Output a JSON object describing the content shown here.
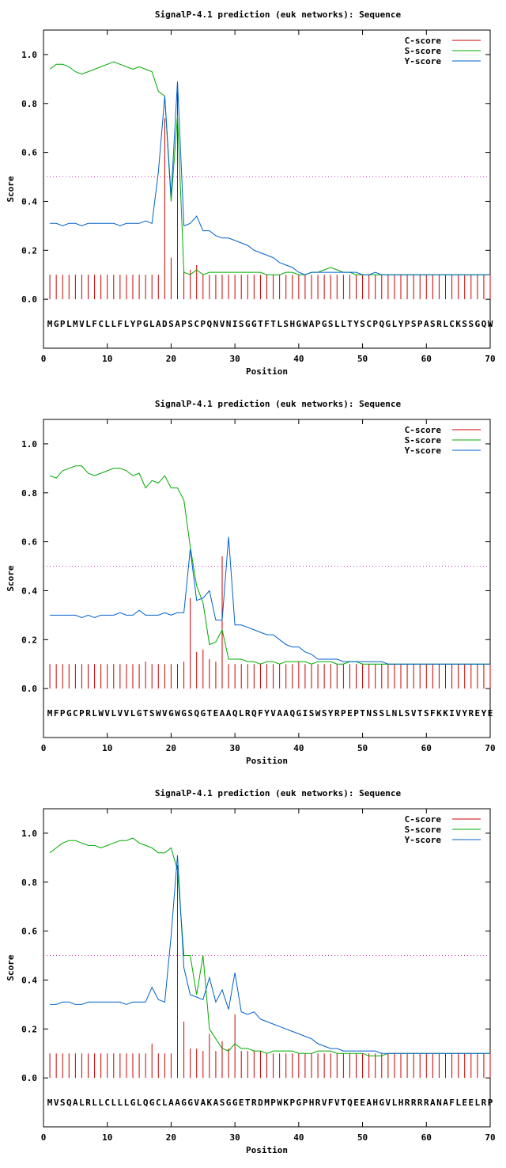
{
  "chart_data": [
    {
      "type": "line",
      "title": "SignalP-4.1 prediction (euk networks): Sequence",
      "xlabel": "Position",
      "ylabel": "Score",
      "xlim": [
        0,
        70
      ],
      "ylim": [
        -0.2,
        1.1
      ],
      "xticks": [
        "0",
        "10",
        "20",
        "30",
        "40",
        "50",
        "60",
        "70"
      ],
      "yticks": [
        "0.0",
        "0.2",
        "0.4",
        "0.6",
        "0.8",
        "1.0"
      ],
      "threshold": 0.5,
      "legend_position": "top-right",
      "sequence": "MGPLMVLFCLLFLYPGLADSAPSCPQNVNISGGTFTLSHGWAPGSLLTYSCPQGLYPSPASRLCKSSGQW",
      "series": [
        {
          "name": "C-score",
          "color": "#cc0000",
          "style": "impulses",
          "values": [
            0.1,
            0.1,
            0.1,
            0.1,
            0.1,
            0.1,
            0.1,
            0.1,
            0.1,
            0.1,
            0.1,
            0.1,
            0.1,
            0.1,
            0.1,
            0.1,
            0.1,
            0.1,
            0.74,
            0.17,
            0.85,
            0.12,
            0.12,
            0.14,
            0.1,
            0.1,
            0.1,
            0.1,
            0.1,
            0.1,
            0.1,
            0.1,
            0.1,
            0.1,
            0.1,
            0.1,
            0.1,
            0.1,
            0.1,
            0.1,
            0.1,
            0.1,
            0.1,
            0.1,
            0.1,
            0.1,
            0.1,
            0.1,
            0.1,
            0.1,
            0.1,
            0.1,
            0.1,
            0.1,
            0.1,
            0.1,
            0.1,
            0.1,
            0.1,
            0.1,
            0.1,
            0.1,
            0.1,
            0.1,
            0.1,
            0.1,
            0.1,
            0.1,
            0.1,
            0.1
          ]
        },
        {
          "name": "S-score",
          "color": "#00aa00",
          "style": "line",
          "values": [
            0.94,
            0.96,
            0.96,
            0.95,
            0.93,
            0.92,
            0.93,
            0.94,
            0.95,
            0.96,
            0.97,
            0.96,
            0.95,
            0.94,
            0.95,
            0.94,
            0.93,
            0.85,
            0.83,
            0.4,
            0.75,
            0.11,
            0.1,
            0.12,
            0.1,
            0.11,
            0.11,
            0.11,
            0.11,
            0.11,
            0.11,
            0.11,
            0.11,
            0.11,
            0.1,
            0.1,
            0.1,
            0.11,
            0.11,
            0.1,
            0.1,
            0.11,
            0.11,
            0.12,
            0.13,
            0.12,
            0.11,
            0.11,
            0.1,
            0.1,
            0.1,
            0.1,
            0.1,
            0.1,
            0.1,
            0.1,
            0.1,
            0.1,
            0.1,
            0.1,
            0.1,
            0.1,
            0.1,
            0.1,
            0.1,
            0.1,
            0.1,
            0.1,
            0.1,
            0.1
          ]
        },
        {
          "name": "Y-score",
          "color": "#0060cc",
          "style": "line",
          "values": [
            0.31,
            0.31,
            0.3,
            0.31,
            0.31,
            0.3,
            0.31,
            0.31,
            0.31,
            0.31,
            0.31,
            0.3,
            0.31,
            0.31,
            0.31,
            0.32,
            0.31,
            0.52,
            0.83,
            0.42,
            0.89,
            0.3,
            0.31,
            0.34,
            0.28,
            0.28,
            0.26,
            0.25,
            0.25,
            0.24,
            0.23,
            0.22,
            0.2,
            0.19,
            0.18,
            0.17,
            0.15,
            0.14,
            0.13,
            0.11,
            0.1,
            0.11,
            0.11,
            0.11,
            0.11,
            0.11,
            0.11,
            0.11,
            0.11,
            0.1,
            0.1,
            0.11,
            0.1,
            0.1,
            0.1,
            0.1,
            0.1,
            0.1,
            0.1,
            0.1,
            0.1,
            0.1,
            0.1,
            0.1,
            0.1,
            0.1,
            0.1,
            0.1,
            0.1,
            0.1
          ]
        }
      ]
    },
    {
      "type": "line",
      "title": "SignalP-4.1 prediction (euk networks): Sequence",
      "xlabel": "Position",
      "ylabel": "Score",
      "xlim": [
        0,
        70
      ],
      "ylim": [
        -0.2,
        1.1
      ],
      "xticks": [
        "0",
        "10",
        "20",
        "30",
        "40",
        "50",
        "60",
        "70"
      ],
      "yticks": [
        "0.0",
        "0.2",
        "0.4",
        "0.6",
        "0.8",
        "1.0"
      ],
      "threshold": 0.5,
      "legend_position": "top-right",
      "sequence": "MFPGCPRLWVLVVLGTSWVGWGSQGTEAAQLRQFYVAAQGISWSYRPEPTNSSLNLSVTSFKKIVYREYE",
      "series": [
        {
          "name": "C-score",
          "color": "#cc0000",
          "style": "impulses",
          "values": [
            0.1,
            0.1,
            0.1,
            0.1,
            0.1,
            0.1,
            0.1,
            0.1,
            0.1,
            0.1,
            0.1,
            0.1,
            0.1,
            0.1,
            0.1,
            0.11,
            0.1,
            0.1,
            0.1,
            0.1,
            0.1,
            0.11,
            0.37,
            0.15,
            0.16,
            0.12,
            0.11,
            0.54,
            0.1,
            0.1,
            0.1,
            0.1,
            0.1,
            0.1,
            0.1,
            0.1,
            0.1,
            0.1,
            0.1,
            0.11,
            0.1,
            0.1,
            0.1,
            0.1,
            0.1,
            0.1,
            0.1,
            0.1,
            0.1,
            0.1,
            0.1,
            0.1,
            0.1,
            0.1,
            0.1,
            0.1,
            0.1,
            0.1,
            0.1,
            0.1,
            0.1,
            0.1,
            0.1,
            0.1,
            0.1,
            0.1,
            0.1,
            0.1,
            0.1,
            0.1
          ]
        },
        {
          "name": "S-score",
          "color": "#00aa00",
          "style": "line",
          "values": [
            0.87,
            0.86,
            0.89,
            0.9,
            0.91,
            0.91,
            0.88,
            0.87,
            0.88,
            0.89,
            0.9,
            0.9,
            0.89,
            0.87,
            0.88,
            0.82,
            0.85,
            0.84,
            0.87,
            0.82,
            0.82,
            0.77,
            0.58,
            0.42,
            0.35,
            0.18,
            0.19,
            0.24,
            0.12,
            0.12,
            0.12,
            0.11,
            0.11,
            0.1,
            0.11,
            0.11,
            0.1,
            0.11,
            0.11,
            0.11,
            0.11,
            0.1,
            0.11,
            0.11,
            0.11,
            0.1,
            0.1,
            0.11,
            0.11,
            0.1,
            0.1,
            0.1,
            0.1,
            0.1,
            0.1,
            0.1,
            0.1,
            0.1,
            0.1,
            0.1,
            0.1,
            0.1,
            0.1,
            0.1,
            0.1,
            0.1,
            0.1,
            0.1,
            0.1,
            0.1
          ]
        },
        {
          "name": "Y-score",
          "color": "#0060cc",
          "style": "line",
          "values": [
            0.3,
            0.3,
            0.3,
            0.3,
            0.3,
            0.29,
            0.3,
            0.29,
            0.3,
            0.3,
            0.3,
            0.31,
            0.3,
            0.3,
            0.32,
            0.3,
            0.3,
            0.3,
            0.31,
            0.3,
            0.31,
            0.31,
            0.57,
            0.36,
            0.37,
            0.4,
            0.28,
            0.28,
            0.62,
            0.26,
            0.26,
            0.25,
            0.24,
            0.23,
            0.22,
            0.22,
            0.2,
            0.18,
            0.17,
            0.17,
            0.15,
            0.14,
            0.12,
            0.12,
            0.12,
            0.12,
            0.11,
            0.11,
            0.11,
            0.11,
            0.11,
            0.11,
            0.11,
            0.1,
            0.1,
            0.1,
            0.1,
            0.1,
            0.1,
            0.1,
            0.1,
            0.1,
            0.1,
            0.1,
            0.1,
            0.1,
            0.1,
            0.1,
            0.1,
            0.1
          ]
        }
      ]
    },
    {
      "type": "line",
      "title": "SignalP-4.1 prediction (euk networks): Sequence",
      "xlabel": "Position",
      "ylabel": "Score",
      "xlim": [
        0,
        70
      ],
      "ylim": [
        -0.2,
        1.1
      ],
      "xticks": [
        "0",
        "10",
        "20",
        "30",
        "40",
        "50",
        "60",
        "70"
      ],
      "yticks": [
        "0.0",
        "0.2",
        "0.4",
        "0.6",
        "0.8",
        "1.0"
      ],
      "threshold": 0.5,
      "legend_position": "top-right",
      "sequence": "MVSQALRLLCLLLGLQGCLAAGGVAKASGGETRDMPWKPGPHRVFVTQEEAHGVLHRRRRANAFLEELRP",
      "series": [
        {
          "name": "C-score",
          "color": "#cc0000",
          "style": "impulses",
          "values": [
            0.1,
            0.1,
            0.1,
            0.1,
            0.1,
            0.1,
            0.1,
            0.1,
            0.1,
            0.1,
            0.1,
            0.1,
            0.1,
            0.1,
            0.1,
            0.1,
            0.14,
            0.1,
            0.1,
            0.1,
            0.87,
            0.23,
            0.12,
            0.12,
            0.11,
            0.18,
            0.11,
            0.15,
            0.12,
            0.26,
            0.11,
            0.11,
            0.11,
            0.11,
            0.1,
            0.1,
            0.1,
            0.1,
            0.1,
            0.1,
            0.1,
            0.1,
            0.1,
            0.1,
            0.1,
            0.1,
            0.1,
            0.1,
            0.1,
            0.1,
            0.1,
            0.1,
            0.1,
            0.1,
            0.1,
            0.1,
            0.1,
            0.1,
            0.1,
            0.1,
            0.1,
            0.1,
            0.1,
            0.1,
            0.1,
            0.1,
            0.1,
            0.1,
            0.1,
            0.1
          ]
        },
        {
          "name": "S-score",
          "color": "#00aa00",
          "style": "line",
          "values": [
            0.92,
            0.94,
            0.96,
            0.97,
            0.97,
            0.96,
            0.95,
            0.95,
            0.94,
            0.95,
            0.96,
            0.97,
            0.97,
            0.98,
            0.96,
            0.95,
            0.94,
            0.92,
            0.92,
            0.94,
            0.85,
            0.5,
            0.5,
            0.34,
            0.5,
            0.2,
            0.16,
            0.12,
            0.11,
            0.14,
            0.12,
            0.12,
            0.11,
            0.11,
            0.1,
            0.11,
            0.11,
            0.11,
            0.11,
            0.1,
            0.1,
            0.1,
            0.11,
            0.11,
            0.11,
            0.1,
            0.1,
            0.1,
            0.1,
            0.1,
            0.09,
            0.09,
            0.09,
            0.1,
            0.1,
            0.1,
            0.1,
            0.1,
            0.1,
            0.1,
            0.1,
            0.1,
            0.1,
            0.1,
            0.1,
            0.1,
            0.1,
            0.1,
            0.1,
            0.1
          ]
        },
        {
          "name": "Y-score",
          "color": "#0060cc",
          "style": "line",
          "values": [
            0.3,
            0.3,
            0.31,
            0.31,
            0.3,
            0.3,
            0.31,
            0.31,
            0.31,
            0.31,
            0.31,
            0.31,
            0.3,
            0.31,
            0.31,
            0.31,
            0.37,
            0.32,
            0.31,
            0.58,
            0.91,
            0.45,
            0.34,
            0.33,
            0.32,
            0.41,
            0.31,
            0.36,
            0.28,
            0.43,
            0.27,
            0.26,
            0.27,
            0.24,
            0.23,
            0.22,
            0.21,
            0.2,
            0.19,
            0.18,
            0.17,
            0.16,
            0.14,
            0.13,
            0.12,
            0.12,
            0.11,
            0.11,
            0.11,
            0.11,
            0.11,
            0.11,
            0.1,
            0.1,
            0.1,
            0.1,
            0.1,
            0.1,
            0.1,
            0.1,
            0.1,
            0.1,
            0.1,
            0.1,
            0.1,
            0.1,
            0.1,
            0.1,
            0.1,
            0.1
          ]
        }
      ]
    }
  ]
}
